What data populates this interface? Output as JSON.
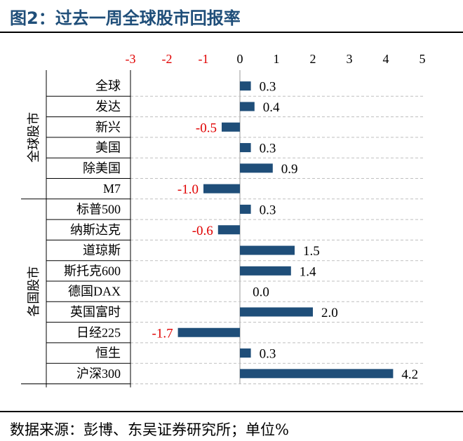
{
  "header": {
    "title": "图2：过去一周全球股市回报率"
  },
  "footer": {
    "source": "数据来源：彭博、东吴证券研究所；单位%"
  },
  "colors": {
    "bar": "#1f4e79",
    "negative_text": "#e00000",
    "title": "#1f4e79"
  },
  "chart_data": {
    "type": "bar",
    "orientation": "horizontal",
    "xlim": [
      -3,
      5
    ],
    "x_ticks": [
      "-3",
      "-2",
      "-1",
      "0",
      "1",
      "2",
      "3",
      "4",
      "5"
    ],
    "groups": [
      {
        "name": "全球股市",
        "categories": [
          "全球",
          "发达",
          "新兴",
          "美国",
          "除美国",
          "M7"
        ]
      },
      {
        "name": "各国股市",
        "categories": [
          "标普500",
          "纳斯达克",
          "道琼斯",
          "斯托克600",
          "德国DAX",
          "英国富时",
          "日经225",
          "恒生",
          "沪深300"
        ]
      }
    ],
    "categories": [
      "全球",
      "发达",
      "新兴",
      "美国",
      "除美国",
      "M7",
      "标普500",
      "纳斯达克",
      "道琼斯",
      "斯托克600",
      "德国DAX",
      "英国富时",
      "日经225",
      "恒生",
      "沪深300"
    ],
    "values": [
      0.3,
      0.4,
      -0.5,
      0.3,
      0.9,
      -1.0,
      0.3,
      -0.6,
      1.5,
      1.4,
      0.0,
      2.0,
      -1.7,
      0.3,
      4.2
    ],
    "labels": [
      "0.3",
      "0.4",
      "-0.5",
      "0.3",
      "0.9",
      "-1.0",
      "0.3",
      "-0.6",
      "1.5",
      "1.4",
      "0.0",
      "2.0",
      "-1.7",
      "0.3",
      "4.2"
    ],
    "grid": true,
    "gridline_style": "dashed"
  }
}
